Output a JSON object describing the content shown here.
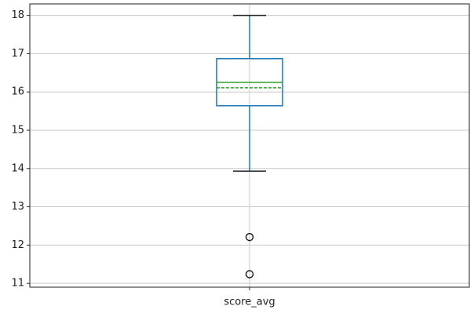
{
  "chart_data": {
    "type": "box",
    "categories": [
      "score_avg"
    ],
    "boxes": [
      {
        "whislo": 13.93,
        "q1": 15.64,
        "med": 16.25,
        "q3": 16.87,
        "whishi": 18.0,
        "mean": 16.11,
        "fliers": [
          12.21,
          11.24
        ]
      }
    ],
    "box_color": "#1f77b4",
    "median_color": "#2ca02c",
    "mean_color": "#2ca02c",
    "whisker_color": "#1f77b4",
    "ylim": [
      10.9,
      18.3
    ],
    "yticks": [
      11,
      12,
      13,
      14,
      15,
      16,
      17,
      18
    ],
    "grid": true
  }
}
